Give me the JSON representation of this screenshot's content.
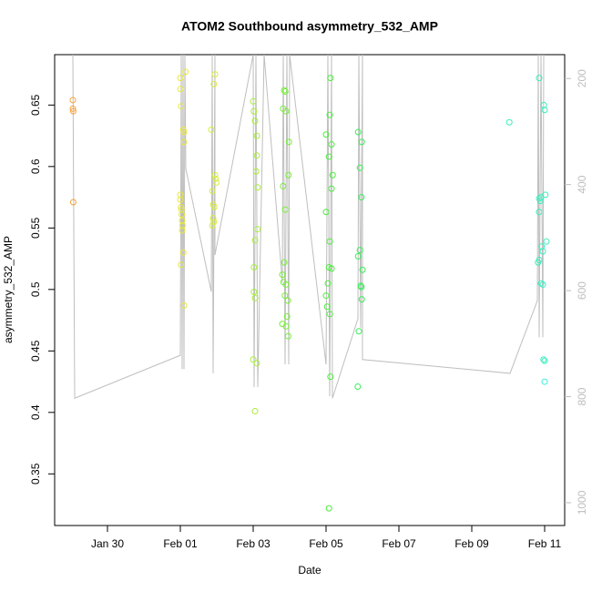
{
  "chart_data": {
    "type": "scatter",
    "title": "ATOM2 Southbound asymmetry_532_AMP",
    "x_label": "Date",
    "y_label": "asymmetry_532_AMP",
    "xlim": [
      28.55,
      42.55
    ],
    "xticks": [
      {
        "value": 30,
        "label": "Jan 30"
      },
      {
        "value": 32,
        "label": "Feb 01"
      },
      {
        "value": 34,
        "label": "Feb 03"
      },
      {
        "value": 36,
        "label": "Feb 05"
      },
      {
        "value": 38,
        "label": "Feb 07"
      },
      {
        "value": 40,
        "label": "Feb 09"
      },
      {
        "value": 42,
        "label": "Feb 11"
      }
    ],
    "ylim": [
      0.308,
      0.691
    ],
    "yticks": [
      0.35,
      0.4,
      {
        "value": 0.45,
        "label": "0.45"
      },
      0.5,
      0.55,
      0.6,
      0.65
    ],
    "y2lim": [
      1043,
      155
    ],
    "y2ticks": [
      200,
      400,
      600,
      800,
      1000
    ],
    "series": [
      {
        "color": "#f4a23c",
        "x": [
          29.05,
          29.05,
          29.06,
          29.06
        ],
        "values": [
          0.654,
          0.647,
          0.645,
          0.571
        ]
      },
      {
        "color": "#e8e83a",
        "x": [
          32.0,
          32.0,
          32.02,
          32.08,
          32.1,
          32.1,
          32.0,
          32.0,
          32.02,
          32.03,
          32.04,
          32.05,
          32.06,
          32.05,
          32.08,
          32.02,
          32.1,
          32.14
        ],
        "values": [
          0.672,
          0.663,
          0.649,
          0.63,
          0.628,
          0.62,
          0.577,
          0.573,
          0.567,
          0.565,
          0.561,
          0.556,
          0.552,
          0.548,
          0.53,
          0.52,
          0.487,
          0.677
        ]
      },
      {
        "color": "#d8ee3a",
        "x": [
          32.95,
          32.92,
          32.85,
          32.95,
          32.97,
          32.99,
          32.88,
          32.9,
          32.93,
          32.9,
          32.92,
          32.88
        ],
        "values": [
          0.675,
          0.667,
          0.63,
          0.593,
          0.59,
          0.587,
          0.58,
          0.569,
          0.567,
          0.558,
          0.555,
          0.552
        ]
      },
      {
        "color": "#a8ee3a",
        "x": [
          34.0,
          34.02,
          34.05,
          34.1,
          34.1,
          34.08,
          34.12,
          34.12,
          34.05,
          34.02,
          34.02,
          34.05,
          34.0,
          34.1,
          34.05
        ],
        "values": [
          0.653,
          0.645,
          0.637,
          0.625,
          0.609,
          0.596,
          0.583,
          0.549,
          0.54,
          0.518,
          0.498,
          0.493,
          0.443,
          0.44,
          0.401
        ]
      },
      {
        "color": "#78ee3a",
        "x": [
          34.85,
          34.88,
          34.82,
          34.9,
          34.98,
          34.97,
          34.82,
          34.88,
          34.85,
          34.8,
          34.83,
          34.9,
          34.87,
          34.95,
          34.93,
          34.8,
          34.9,
          34.96
        ],
        "values": [
          0.662,
          0.661,
          0.647,
          0.645,
          0.62,
          0.593,
          0.584,
          0.565,
          0.522,
          0.512,
          0.506,
          0.504,
          0.495,
          0.491,
          0.478,
          0.472,
          0.47,
          0.462
        ]
      },
      {
        "color": "#4aee3a",
        "x": [
          36.12,
          36.1,
          36.0,
          36.15,
          36.08,
          36.18,
          36.15,
          36.0,
          36.1,
          36.08,
          36.15,
          36.05,
          36.0,
          36.03,
          36.1,
          36.12,
          36.08
        ],
        "values": [
          0.672,
          0.642,
          0.626,
          0.618,
          0.608,
          0.593,
          0.582,
          0.563,
          0.539,
          0.518,
          0.517,
          0.505,
          0.495,
          0.486,
          0.48,
          0.429,
          0.322
        ]
      },
      {
        "color": "#3aee5a",
        "x": [
          36.88,
          36.98,
          36.93,
          36.97,
          36.93,
          36.88,
          37.0,
          36.95,
          36.97,
          36.98,
          36.9,
          36.87
        ],
        "values": [
          0.628,
          0.62,
          0.599,
          0.575,
          0.532,
          0.527,
          0.516,
          0.503,
          0.502,
          0.492,
          0.466,
          0.421
        ]
      },
      {
        "color": "#3aeebe",
        "x": [
          41.03,
          41.85,
          41.98,
          42.0,
          42.02,
          41.9,
          41.85,
          41.88,
          41.85,
          42.05,
          41.92,
          41.95,
          41.85,
          41.82,
          41.9,
          41.95,
          41.97,
          42.0
        ],
        "values": [
          0.636,
          0.672,
          0.65,
          0.646,
          0.577,
          0.575,
          0.574,
          0.572,
          0.563,
          0.539,
          0.535,
          0.531,
          0.524,
          0.522,
          0.505,
          0.504,
          0.443,
          0.442
        ]
      },
      {
        "color": "#3aeedc",
        "x": [
          42.0
        ],
        "values": [
          0.425
        ]
      },
      {
        "type": "line",
        "axis": "y2",
        "color": "#bebebe",
        "x": [
          29.05,
          29.1,
          32.0,
          32.025,
          32.05,
          32.075,
          32.1,
          32.125,
          32.15,
          32.85,
          32.875,
          32.9,
          32.95,
          32.95,
          34.0,
          34.025,
          34.075,
          34.125,
          34.3,
          34.8,
          34.825,
          34.875,
          34.925,
          34.975,
          35.0,
          36.0,
          36.05,
          36.1,
          36.15,
          36.175,
          36.875,
          36.9,
          36.95,
          37.0,
          37.0,
          41.05,
          41.8,
          41.825,
          41.85,
          41.9,
          41.95,
          41.975
        ],
        "values": [
          155,
          803,
          722,
          155,
          748,
          155,
          748,
          155,
          370,
          602,
          155,
          756,
          155,
          533,
          155,
          782,
          155,
          782,
          155,
          585,
          155,
          739,
          155,
          739,
          155,
          739,
          155,
          799,
          155,
          803,
          653,
          155,
          670,
          155,
          730,
          756,
          619,
          155,
          688,
          155,
          688,
          155
        ]
      }
    ]
  }
}
